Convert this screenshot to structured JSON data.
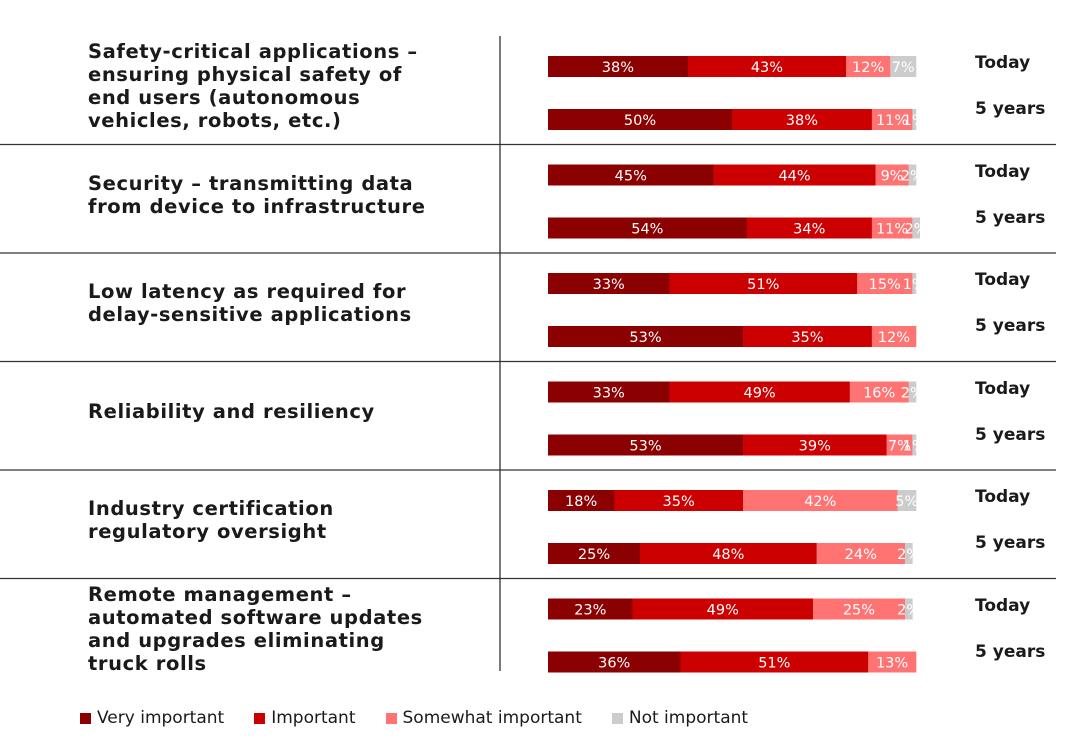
{
  "chart_data": {
    "type": "bar",
    "orientation": "horizontal",
    "stacked": true,
    "categories": [
      "Safety-critical applications – ensuring physical safety of end users (autonomous vehicles, robots, etc.)",
      "Security – transmitting data from device to infrastructure",
      "Low latency as required for delay-sensitive applications",
      "Reliability and resiliency",
      "Industry certification regulatory oversight",
      "Remote management – automated software updates and upgrades eliminating truck rolls"
    ],
    "periods": [
      "Today",
      "5 years"
    ],
    "series": [
      {
        "name": "Very important",
        "color": "#8b0000",
        "values": [
          [
            38,
            50
          ],
          [
            45,
            54
          ],
          [
            33,
            53
          ],
          [
            33,
            53
          ],
          [
            18,
            25
          ],
          [
            23,
            36
          ]
        ]
      },
      {
        "name": "Important",
        "color": "#cc0000",
        "values": [
          [
            43,
            38
          ],
          [
            44,
            34
          ],
          [
            51,
            35
          ],
          [
            49,
            39
          ],
          [
            35,
            48
          ],
          [
            49,
            51
          ]
        ]
      },
      {
        "name": "Somewhat important",
        "color": "#ff7373",
        "values": [
          [
            12,
            11
          ],
          [
            9,
            11
          ],
          [
            15,
            12
          ],
          [
            16,
            7
          ],
          [
            42,
            24
          ],
          [
            25,
            13
          ]
        ]
      },
      {
        "name": "Not important",
        "color": "#cccccc",
        "values": [
          [
            7,
            1
          ],
          [
            2,
            2
          ],
          [
            1,
            0
          ],
          [
            2,
            1
          ],
          [
            5,
            2
          ],
          [
            2,
            0
          ]
        ]
      }
    ],
    "data_labels": [
      [
        [
          "38%",
          "43%",
          "12%",
          "7%"
        ],
        [
          "50%",
          "38%",
          "11%",
          "1%"
        ]
      ],
      [
        [
          "45%",
          "44%",
          "9%",
          "2%"
        ],
        [
          "54%",
          "34%",
          "11%",
          "2%"
        ]
      ],
      [
        [
          "33%",
          "51%",
          "15%",
          "1%"
        ],
        [
          "53%",
          "35%",
          "12%",
          ""
        ]
      ],
      [
        [
          "33%",
          "49%",
          "16%",
          "2%"
        ],
        [
          "53%",
          "39%",
          "7%",
          "1%"
        ]
      ],
      [
        [
          "18%",
          "35%",
          "42%",
          "5%"
        ],
        [
          "25%",
          "48%",
          "24%",
          "2%"
        ]
      ],
      [
        [
          "23%",
          "49%",
          "25%",
          "2%"
        ],
        [
          "36%",
          "51%",
          "13%",
          ""
        ]
      ]
    ],
    "xlim": [
      0,
      100
    ],
    "legend_position": "bottom",
    "grid": false
  },
  "labels": {
    "categories": [
      [
        "Safety-critical applications –",
        "ensuring physical safety of",
        "end users (autonomous",
        "vehicles, robots, etc.)"
      ],
      [
        "Security – transmitting data",
        "from device to infrastructure"
      ],
      [
        "Low latency as required for",
        "delay-sensitive applications"
      ],
      [
        "Reliability and resiliency"
      ],
      [
        "Industry certification",
        "regulatory oversight"
      ],
      [
        "Remote management –",
        "automated software updates",
        "and upgrades eliminating",
        "truck rolls"
      ]
    ],
    "periods": [
      "Today",
      "5 years"
    ]
  },
  "legend": [
    {
      "label": "Very important",
      "color": "#8b0000"
    },
    {
      "label": "Important",
      "color": "#cc0000"
    },
    {
      "label": "Somewhat important",
      "color": "#ff7373"
    },
    {
      "label": "Not important",
      "color": "#cccccc"
    }
  ]
}
